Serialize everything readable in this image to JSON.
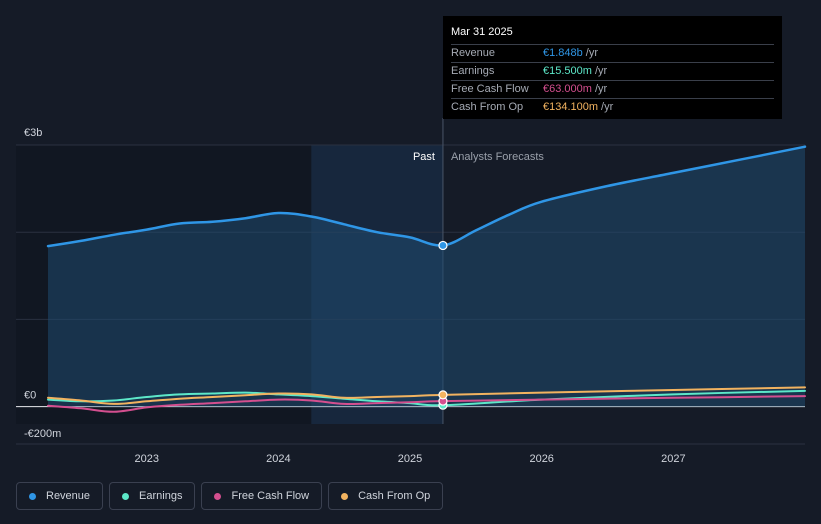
{
  "tooltip": {
    "date": "Mar 31 2025",
    "rows": [
      {
        "name": "Revenue",
        "value": "€1.848b",
        "unit": "/yr",
        "color": "#2f96e6"
      },
      {
        "name": "Earnings",
        "value": "€15.500m",
        "unit": "/yr",
        "color": "#5de8c9"
      },
      {
        "name": "Free Cash Flow",
        "value": "€63.000m",
        "unit": "/yr",
        "color": "#d44f8f"
      },
      {
        "name": "Cash From Op",
        "value": "€134.100m",
        "unit": "/yr",
        "color": "#f2b360"
      }
    ]
  },
  "chart_data": {
    "type": "line",
    "y_tick_labels": [
      "€3b",
      "€0",
      "-€200m"
    ],
    "ylim": [
      -200,
      3000
    ],
    "xlim": [
      2022.25,
      2028.0
    ],
    "x_tick_labels": [
      "2023",
      "2024",
      "2025",
      "2026",
      "2027"
    ],
    "x_ticks": [
      2023,
      2024,
      2025,
      2026,
      2027
    ],
    "past_label": "Past",
    "forecast_label": "Analysts Forecasts",
    "divider_x": 2025.25,
    "highlight_start_x": 2024.25,
    "series": [
      {
        "name": "Revenue",
        "color": "#2f96e6",
        "area": true,
        "x": [
          2022.25,
          2022.5,
          2022.75,
          2023.0,
          2023.25,
          2023.5,
          2023.75,
          2024.0,
          2024.25,
          2024.5,
          2024.75,
          2025.0,
          2025.25,
          2025.5,
          2025.75,
          2026.0,
          2026.5,
          2027.0,
          2027.5,
          2028.0
        ],
        "y": [
          1840,
          1900,
          1970,
          2030,
          2100,
          2120,
          2160,
          2220,
          2180,
          2090,
          2000,
          1940,
          1848,
          2020,
          2200,
          2350,
          2530,
          2680,
          2830,
          2980
        ]
      },
      {
        "name": "Earnings",
        "color": "#5de8c9",
        "area": false,
        "x": [
          2022.25,
          2022.5,
          2022.75,
          2023.0,
          2023.25,
          2023.5,
          2023.75,
          2024.0,
          2024.25,
          2024.5,
          2024.75,
          2025.0,
          2025.25,
          2026.0,
          2027.0,
          2028.0
        ],
        "y": [
          80,
          60,
          70,
          110,
          140,
          150,
          160,
          140,
          120,
          90,
          60,
          40,
          15.5,
          80,
          140,
          180
        ]
      },
      {
        "name": "Free Cash Flow",
        "color": "#d44f8f",
        "area": false,
        "x": [
          2022.25,
          2022.5,
          2022.75,
          2023.0,
          2023.25,
          2023.5,
          2023.75,
          2024.0,
          2024.25,
          2024.5,
          2024.75,
          2025.0,
          2025.25,
          2026.0,
          2027.0,
          2028.0
        ],
        "y": [
          10,
          -20,
          -60,
          -10,
          20,
          40,
          60,
          80,
          70,
          30,
          40,
          50,
          63,
          80,
          100,
          120
        ]
      },
      {
        "name": "Cash From Op",
        "color": "#f2b360",
        "area": false,
        "x": [
          2022.25,
          2022.5,
          2022.75,
          2023.0,
          2023.25,
          2023.5,
          2023.75,
          2024.0,
          2024.25,
          2024.5,
          2024.75,
          2025.0,
          2025.25,
          2026.0,
          2027.0,
          2028.0
        ],
        "y": [
          100,
          70,
          30,
          60,
          90,
          110,
          130,
          150,
          140,
          100,
          110,
          120,
          134.1,
          160,
          190,
          220
        ]
      }
    ]
  },
  "legend": [
    {
      "label": "Revenue",
      "color": "#2f96e6"
    },
    {
      "label": "Earnings",
      "color": "#5de8c9"
    },
    {
      "label": "Free Cash Flow",
      "color": "#d44f8f"
    },
    {
      "label": "Cash From Op",
      "color": "#f2b360"
    }
  ]
}
